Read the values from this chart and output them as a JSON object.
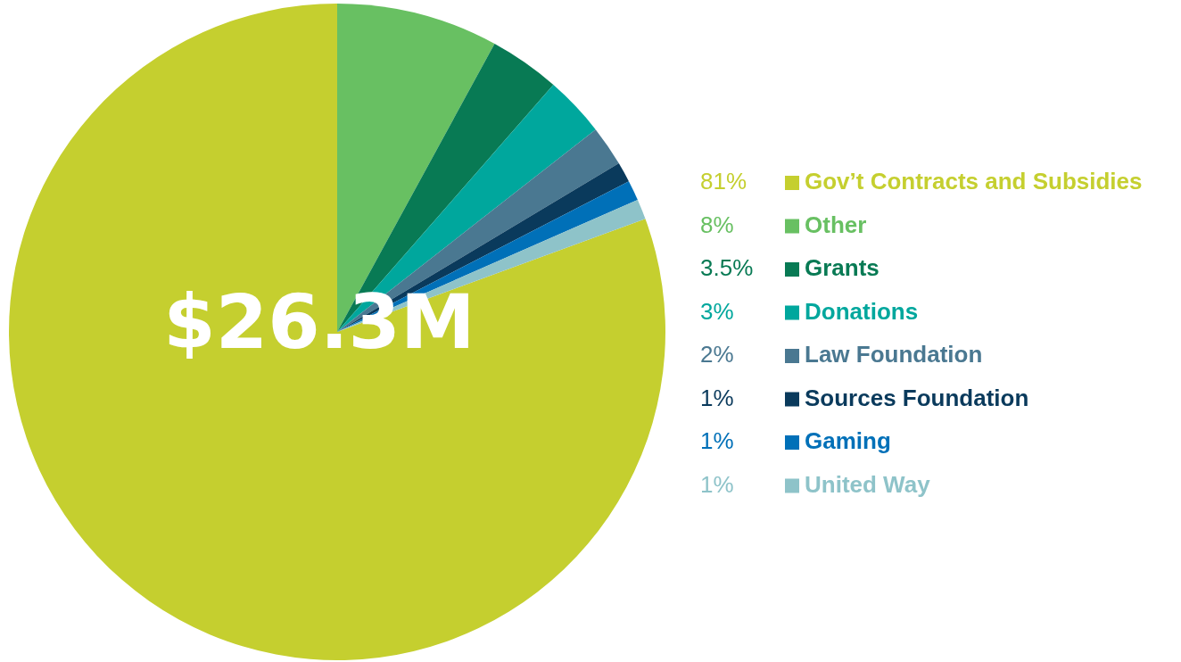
{
  "chart_data": {
    "type": "pie",
    "categories": [
      "Gov’t Contracts and Subsidies",
      "Other",
      "Grants",
      "Donations",
      "Law Foundation",
      "Sources Foundation",
      "Gaming",
      "United Way"
    ],
    "values": [
      81,
      8,
      3.5,
      3,
      2,
      1,
      1,
      1
    ],
    "colors": [
      "#c5cf2f",
      "#68c062",
      "#087a54",
      "#00a79d",
      "#4a7891",
      "#0a3a5c",
      "#0070b8",
      "#8ec3c9"
    ],
    "value_labels": [
      "81%",
      "8%",
      "3.5%",
      "3%",
      "2%",
      "1%",
      "1%",
      "1%"
    ],
    "annotations": [
      "$26.3M"
    ],
    "legend": "right"
  }
}
